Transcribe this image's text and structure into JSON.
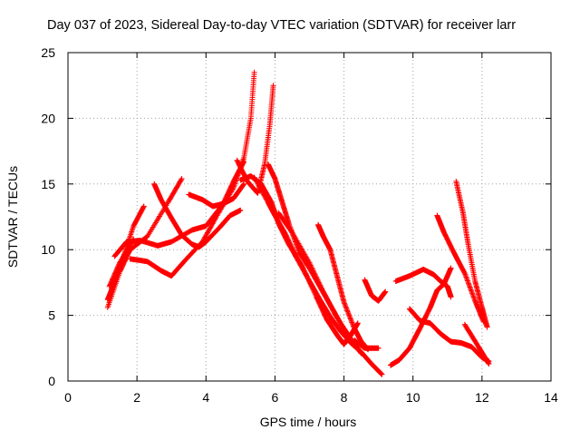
{
  "chart_data": {
    "type": "scatter",
    "title": "Day 037 of 2023, Sidereal Day-to-day VTEC variation (SDTVAR) for receiver larr",
    "xlabel": "GPS time / hours",
    "ylabel": "SDTVAR / TECUs",
    "xlim": [
      0,
      14
    ],
    "ylim": [
      0,
      25
    ],
    "xticks": [
      0,
      2,
      4,
      6,
      8,
      10,
      12,
      14
    ],
    "yticks": [
      0,
      5,
      10,
      15,
      20,
      25
    ],
    "grid": true,
    "marker": "plus",
    "series_color": "#ff0000",
    "series": [
      {
        "x": [
          1.15,
          1.5,
          1.8,
          2.3,
          2.9,
          3.3
        ],
        "y": [
          5.6,
          8.3,
          10.0,
          11.0,
          13.6,
          15.4
        ]
      },
      {
        "x": [
          1.15,
          1.35,
          1.6,
          1.9,
          2.2
        ],
        "y": [
          6.2,
          7.5,
          9.4,
          11.8,
          13.3
        ]
      },
      {
        "x": [
          1.2,
          1.5,
          1.9
        ],
        "y": [
          7.2,
          9.0,
          10.8
        ]
      },
      {
        "x": [
          1.35,
          1.7,
          2.1,
          2.6,
          3.0,
          3.6,
          4.0,
          4.5,
          4.8,
          5.1
        ],
        "y": [
          9.5,
          10.6,
          10.7,
          10.3,
          10.6,
          11.5,
          11.8,
          13.5,
          15.2,
          16.7
        ]
      },
      {
        "x": [
          1.8,
          2.3,
          2.7,
          3.0,
          3.4,
          3.9,
          4.3,
          4.8,
          5.1,
          5.3,
          5.4
        ],
        "y": [
          9.3,
          9.1,
          8.4,
          8.0,
          9.2,
          10.6,
          12.5,
          14.7,
          17.0,
          20.0,
          23.5
        ]
      },
      {
        "x": [
          2.5,
          2.7,
          3.0,
          3.3,
          3.6,
          3.8,
          4.0,
          4.4,
          4.7,
          5.0
        ],
        "y": [
          15.0,
          13.8,
          12.4,
          11.1,
          10.4,
          10.2,
          10.6,
          11.7,
          12.6,
          13.0
        ]
      },
      {
        "x": [
          3.5,
          3.9,
          4.2,
          4.5,
          4.8,
          5.1
        ],
        "y": [
          14.2,
          13.8,
          13.3,
          13.5,
          13.9,
          15.0
        ]
      },
      {
        "x": [
          4.9,
          5.2,
          5.5,
          5.7,
          5.85,
          5.95
        ],
        "y": [
          16.8,
          15.2,
          14.3,
          16.5,
          19.5,
          22.5
        ]
      },
      {
        "x": [
          5.0,
          5.3,
          5.6,
          5.9,
          6.1,
          6.4,
          6.8,
          7.2,
          7.5,
          7.8,
          8.0,
          8.2,
          8.4
        ],
        "y": [
          15.3,
          15.6,
          15.0,
          13.6,
          12.0,
          10.4,
          8.7,
          6.4,
          4.7,
          3.5,
          2.8,
          3.5,
          4.4
        ]
      },
      {
        "x": [
          5.4,
          5.8,
          6.0,
          6.3,
          6.6,
          7.0,
          7.3,
          7.6,
          7.9,
          8.2,
          8.5,
          8.8,
          9.1
        ],
        "y": [
          15.5,
          13.6,
          12.6,
          11.2,
          9.5,
          7.6,
          6.2,
          4.9,
          3.8,
          2.9,
          2.2,
          1.3,
          0.5
        ]
      },
      {
        "x": [
          5.8,
          6.0,
          6.2,
          6.4,
          6.7,
          7.0,
          7.3,
          7.6,
          7.9,
          8.2,
          8.5
        ],
        "y": [
          16.5,
          15.4,
          13.7,
          12.0,
          9.8,
          8.6,
          7.2,
          5.8,
          4.4,
          3.2,
          2.1
        ]
      },
      {
        "x": [
          6.1,
          6.5,
          7.0,
          7.4,
          7.8
        ],
        "y": [
          12.8,
          11.3,
          9.0,
          6.8,
          4.8
        ]
      },
      {
        "x": [
          7.25,
          7.4,
          7.6,
          7.8,
          8.0,
          8.3,
          8.5,
          8.7
        ],
        "y": [
          11.9,
          11.0,
          10.0,
          8.0,
          6.0,
          4.0,
          3.0,
          2.4
        ]
      },
      {
        "x": [
          8.6,
          8.8,
          9.0,
          9.2
        ],
        "y": [
          7.7,
          6.5,
          6.1,
          6.8
        ]
      },
      {
        "x": [
          8.3,
          8.6,
          9.0
        ],
        "y": [
          3.1,
          2.5,
          2.5
        ]
      },
      {
        "x": [
          9.35,
          9.6,
          9.9,
          10.2,
          10.5,
          10.7,
          10.9,
          11.1
        ],
        "y": [
          1.2,
          1.6,
          2.5,
          4.0,
          5.6,
          6.9,
          7.4,
          8.6
        ]
      },
      {
        "x": [
          9.5,
          9.9,
          10.3,
          10.6,
          10.8,
          11.0,
          11.1
        ],
        "y": [
          7.6,
          8.0,
          8.5,
          8.1,
          7.6,
          7.2,
          6.4
        ]
      },
      {
        "x": [
          9.9,
          10.2,
          10.5,
          10.8,
          11.1,
          11.4,
          11.7,
          12.0,
          12.2
        ],
        "y": [
          5.5,
          4.6,
          4.4,
          3.6,
          3.0,
          2.9,
          2.6,
          1.8,
          1.5
        ]
      },
      {
        "x": [
          10.7,
          10.9,
          11.2,
          11.5,
          11.8,
          12.05
        ],
        "y": [
          12.6,
          11.3,
          9.7,
          8.2,
          6.1,
          4.5
        ]
      },
      {
        "x": [
          11.25,
          11.45,
          11.6,
          11.8,
          12.0,
          12.15
        ],
        "y": [
          15.2,
          12.8,
          10.4,
          7.6,
          5.6,
          4.1
        ]
      },
      {
        "x": [
          11.5,
          11.9,
          12.2
        ],
        "y": [
          4.3,
          2.6,
          1.3
        ]
      }
    ]
  }
}
